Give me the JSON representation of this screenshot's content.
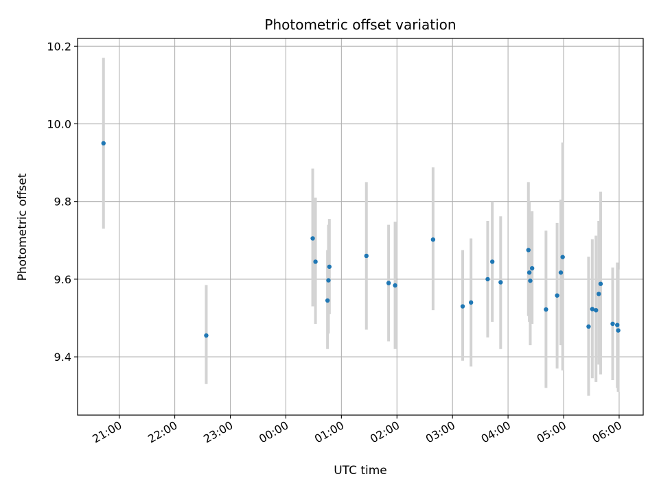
{
  "chart_data": {
    "type": "scatter",
    "title": "Photometric offset variation",
    "xlabel": "UTC time",
    "ylabel": "Photometric offset",
    "x_axis_kind": "time",
    "xlim": [
      "20:15",
      "06:26"
    ],
    "ylim": [
      9.25,
      10.22
    ],
    "grid": true,
    "marker_color": "#1f77b4",
    "errorbar_color": "#d3d3d3",
    "y_ticks": [
      {
        "value": 9.4,
        "label": "9.4"
      },
      {
        "value": 9.6,
        "label": "9.6"
      },
      {
        "value": 9.8,
        "label": "9.8"
      },
      {
        "value": 10.0,
        "label": "10.0"
      },
      {
        "value": 10.2,
        "label": "10.2"
      }
    ],
    "x_ticks": [
      {
        "value": "21:00",
        "label": "21:00"
      },
      {
        "value": "22:00",
        "label": "22:00"
      },
      {
        "value": "23:00",
        "label": "23:00"
      },
      {
        "value": "00:00",
        "label": "00:00"
      },
      {
        "value": "01:00",
        "label": "01:00"
      },
      {
        "value": "02:00",
        "label": "02:00"
      },
      {
        "value": "03:00",
        "label": "03:00"
      },
      {
        "value": "04:00",
        "label": "04:00"
      },
      {
        "value": "05:00",
        "label": "05:00"
      },
      {
        "value": "06:00",
        "label": "06:00"
      }
    ],
    "points": [
      {
        "x": "20:43",
        "y": 9.95,
        "low": 9.73,
        "high": 10.17
      },
      {
        "x": "22:34",
        "y": 9.455,
        "low": 9.33,
        "high": 9.585
      },
      {
        "x": "00:29",
        "y": 9.705,
        "low": 9.53,
        "high": 9.885
      },
      {
        "x": "00:32",
        "y": 9.645,
        "low": 9.485,
        "high": 9.81
      },
      {
        "x": "00:45",
        "y": 9.545,
        "low": 9.42,
        "high": 9.675
      },
      {
        "x": "00:46",
        "y": 9.597,
        "low": 9.46,
        "high": 9.74
      },
      {
        "x": "00:47",
        "y": 9.632,
        "low": 9.51,
        "high": 9.755
      },
      {
        "x": "01:27",
        "y": 9.66,
        "low": 9.47,
        "high": 9.85
      },
      {
        "x": "01:51",
        "y": 9.59,
        "low": 9.44,
        "high": 9.74
      },
      {
        "x": "01:58",
        "y": 9.584,
        "low": 9.42,
        "high": 9.748
      },
      {
        "x": "02:39",
        "y": 9.702,
        "low": 9.52,
        "high": 9.888
      },
      {
        "x": "03:11",
        "y": 9.53,
        "low": 9.39,
        "high": 9.675
      },
      {
        "x": "03:20",
        "y": 9.54,
        "low": 9.375,
        "high": 9.705
      },
      {
        "x": "03:38",
        "y": 9.6,
        "low": 9.45,
        "high": 9.75
      },
      {
        "x": "03:43",
        "y": 9.645,
        "low": 9.49,
        "high": 9.8
      },
      {
        "x": "03:52",
        "y": 9.592,
        "low": 9.42,
        "high": 9.762
      },
      {
        "x": "04:22",
        "y": 9.675,
        "low": 9.505,
        "high": 9.85
      },
      {
        "x": "04:23",
        "y": 9.617,
        "low": 9.49,
        "high": 9.8
      },
      {
        "x": "04:24",
        "y": 9.596,
        "low": 9.43,
        "high": 9.76
      },
      {
        "x": "04:26",
        "y": 9.628,
        "low": 9.485,
        "high": 9.775
      },
      {
        "x": "04:41",
        "y": 9.522,
        "low": 9.32,
        "high": 9.725
      },
      {
        "x": "04:53",
        "y": 9.558,
        "low": 9.37,
        "high": 9.745
      },
      {
        "x": "04:57",
        "y": 9.617,
        "low": 9.43,
        "high": 9.805
      },
      {
        "x": "04:59",
        "y": 9.657,
        "low": 9.365,
        "high": 9.952
      },
      {
        "x": "05:27",
        "y": 9.478,
        "low": 9.3,
        "high": 9.658
      },
      {
        "x": "05:31",
        "y": 9.523,
        "low": 9.345,
        "high": 9.703
      },
      {
        "x": "05:35",
        "y": 9.52,
        "low": 9.335,
        "high": 9.712
      },
      {
        "x": "05:38",
        "y": 9.562,
        "low": 9.38,
        "high": 9.75
      },
      {
        "x": "05:40",
        "y": 9.588,
        "low": 9.355,
        "high": 9.825
      },
      {
        "x": "05:53",
        "y": 9.485,
        "low": 9.34,
        "high": 9.63
      },
      {
        "x": "05:58",
        "y": 9.482,
        "low": 9.32,
        "high": 9.643
      },
      {
        "x": "05:59",
        "y": 9.468,
        "low": 9.31,
        "high": 9.625
      }
    ]
  }
}
